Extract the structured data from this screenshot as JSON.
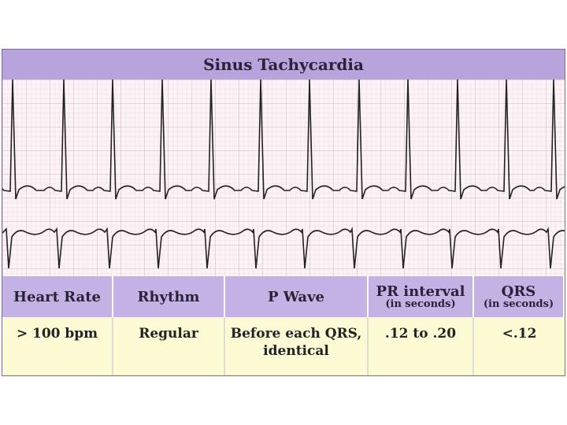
{
  "title": "Sinus Tachycardia",
  "table": {
    "headers": [
      {
        "label": "Heart Rate"
      },
      {
        "label": "Rhythm"
      },
      {
        "label": "P Wave"
      },
      {
        "label": "PR interval",
        "note": "(in seconds)"
      },
      {
        "label": "QRS",
        "note": "(in seconds)"
      }
    ],
    "rows": [
      [
        "> 100 bpm",
        "Regular",
        "Before each QRS, identical",
        ".12 to .20",
        "<.12"
      ]
    ]
  }
}
